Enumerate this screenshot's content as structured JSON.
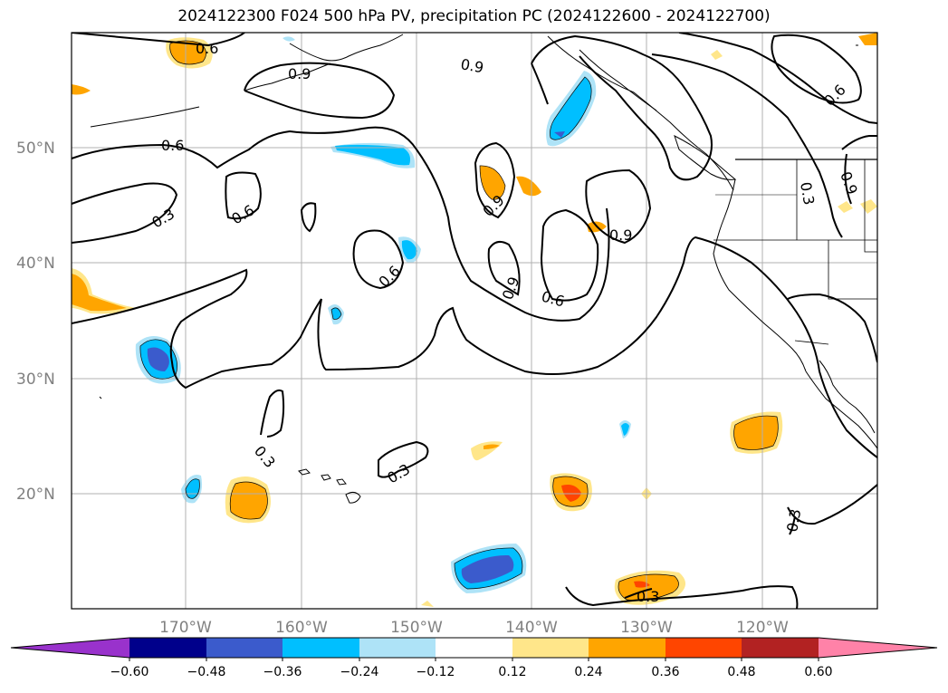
{
  "title": "2024122300 F024 500 hPa PV, precipitation PC (2024122600 - 2024122700)",
  "lat_labels": [
    "50°N",
    "40°N",
    "30°N",
    "20°N"
  ],
  "lon_labels": [
    "170°W",
    "160°W",
    "150°W",
    "140°W",
    "130°W",
    "120°W"
  ],
  "contour_labels": [
    "0.6",
    "0.9",
    "0.6",
    "0.3",
    "0.6",
    "0.9",
    "0.9",
    "0.9",
    "0.6",
    "0.9",
    "0.6",
    "0.3",
    "0.9",
    "0.6",
    "0.3",
    "0.3",
    "0.3",
    "0.3"
  ],
  "colorbar": {
    "ticks": [
      "−0.60",
      "−0.48",
      "−0.36",
      "−0.24",
      "−0.12",
      "0.12",
      "0.24",
      "0.36",
      "0.48",
      "0.60"
    ],
    "colors": [
      "#9932cc",
      "#00008b",
      "#3b5bcc",
      "#00bfff",
      "#aee3f7",
      "#ffffff",
      "#ffe68a",
      "#ffa500",
      "#ff4500",
      "#b22222",
      "#ff82a8"
    ]
  },
  "colors": {
    "pv_contour": "#000000",
    "coast": "#000000",
    "grid": "#b0b0b0"
  }
}
